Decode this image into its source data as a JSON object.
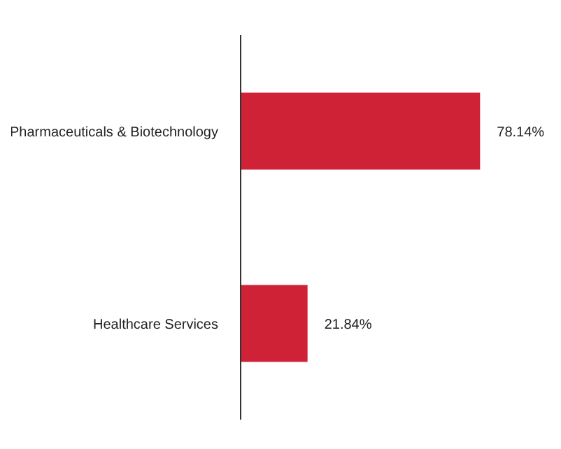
{
  "chart_data": {
    "type": "bar",
    "orientation": "horizontal",
    "categories": [
      "Pharmaceuticals & Biotechnology",
      "Healthcare Services"
    ],
    "values": [
      78.14,
      21.84
    ],
    "value_labels": [
      "78.14%",
      "21.84%"
    ],
    "color": "#cf2236"
  }
}
